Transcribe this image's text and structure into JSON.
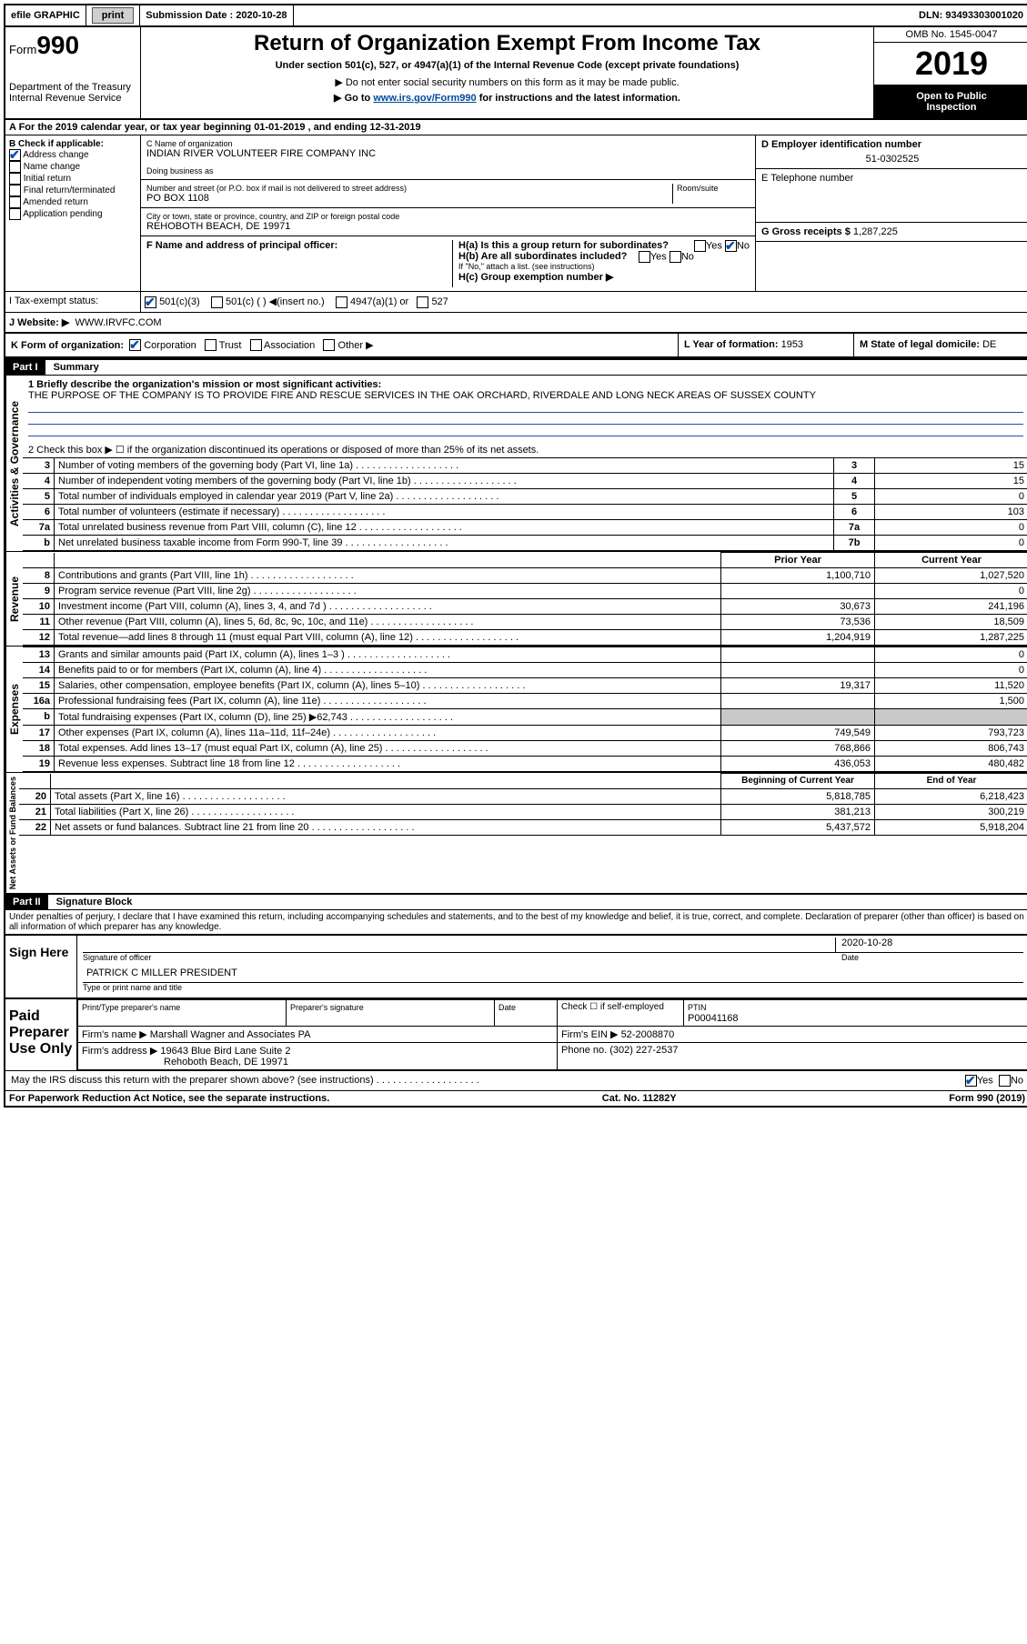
{
  "topbar": {
    "efile": "efile GRAPHIC",
    "print": "print",
    "submission_label": "Submission Date :",
    "submission_date": "2020-10-28",
    "dln_label": "DLN:",
    "dln": "93493303001020"
  },
  "header": {
    "form_word": "Form",
    "form_no": "990",
    "dept1": "Department of the Treasury",
    "dept2": "Internal Revenue Service",
    "title": "Return of Organization Exempt From Income Tax",
    "subtitle": "Under section 501(c), 527, or 4947(a)(1) of the Internal Revenue Code (except private foundations)",
    "note1": "▶ Do not enter social security numbers on this form as it may be made public.",
    "note2_pre": "▶ Go to ",
    "note2_link": "www.irs.gov/Form990",
    "note2_post": " for instructions and the latest information.",
    "omb": "OMB No. 1545-0047",
    "year": "2019",
    "open_public1": "Open to Public",
    "open_public2": "Inspection"
  },
  "lineA": "A For the 2019 calendar year, or tax year beginning 01-01-2019    , and ending 12-31-2019",
  "colB": {
    "title": "B Check if applicable:",
    "items": [
      "Address change",
      "Name change",
      "Initial return",
      "Final return/terminated",
      "Amended return",
      "Application pending"
    ],
    "checked_index": 0
  },
  "colC": {
    "name_label": "C Name of organization",
    "name": "INDIAN RIVER VOLUNTEER FIRE COMPANY INC",
    "dba_label": "Doing business as",
    "dba": "",
    "street_label": "Number and street (or P.O. box if mail is not delivered to street address)",
    "room_label": "Room/suite",
    "street": "PO BOX 1108",
    "city_label": "City or town, state or province, country, and ZIP or foreign postal code",
    "city": "REHOBOTH BEACH, DE  19971",
    "f_label": "F  Name and address of principal officer:",
    "f_value": ""
  },
  "colD": {
    "ein_label": "D Employer identification number",
    "ein": "51-0302525",
    "tel_label": "E Telephone number",
    "tel": "",
    "g_label": "G Gross receipts $",
    "g_value": "1,287,225"
  },
  "h": {
    "ha": "H(a)  Is this a group return for subordinates?",
    "hb": "H(b)  Are all subordinates included?",
    "hb_note": "If \"No,\" attach a list. (see instructions)",
    "hc": "H(c)  Group exemption number ▶",
    "yes": "Yes",
    "no": "No"
  },
  "i": {
    "label": "I   Tax-exempt status:",
    "opts": [
      "501(c)(3)",
      "501(c) (  ) ◀(insert no.)",
      "4947(a)(1) or",
      "527"
    ]
  },
  "j": {
    "label": "J   Website: ▶",
    "value": "WWW.IRVFC.COM"
  },
  "k": {
    "label": "K Form of organization:",
    "opts": [
      "Corporation",
      "Trust",
      "Association",
      "Other ▶"
    ],
    "l_label": "L Year of formation:",
    "l_value": "1953",
    "m_label": "M State of legal domicile:",
    "m_value": "DE"
  },
  "part1": {
    "title": "Part I",
    "sub": "Summary",
    "q1_label": "1  Briefly describe the organization's mission or most significant activities:",
    "q1_text": "THE PURPOSE OF THE COMPANY IS TO PROVIDE FIRE AND RESCUE SERVICES IN THE OAK ORCHARD, RIVERDALE AND LONG NECK AREAS OF SUSSEX COUNTY",
    "q2": "2   Check this box ▶ ☐  if the organization discontinued its operations or disposed of more than 25% of its net assets.",
    "governance_label": "Activities & Governance",
    "rows_gov": [
      {
        "n": "3",
        "t": "Number of voting members of the governing body (Part VI, line 1a)",
        "box": "3",
        "v": "15"
      },
      {
        "n": "4",
        "t": "Number of independent voting members of the governing body (Part VI, line 1b)",
        "box": "4",
        "v": "15"
      },
      {
        "n": "5",
        "t": "Total number of individuals employed in calendar year 2019 (Part V, line 2a)",
        "box": "5",
        "v": "0"
      },
      {
        "n": "6",
        "t": "Total number of volunteers (estimate if necessary)",
        "box": "6",
        "v": "103"
      },
      {
        "n": "7a",
        "t": "Total unrelated business revenue from Part VIII, column (C), line 12",
        "box": "7a",
        "v": "0"
      },
      {
        "n": "b",
        "t": "Net unrelated business taxable income from Form 990-T, line 39",
        "box": "7b",
        "v": "0"
      }
    ],
    "col_prior": "Prior Year",
    "col_current": "Current Year",
    "revenue_label": "Revenue",
    "rows_rev": [
      {
        "n": "8",
        "t": "Contributions and grants (Part VIII, line 1h)",
        "p": "1,100,710",
        "c": "1,027,520"
      },
      {
        "n": "9",
        "t": "Program service revenue (Part VIII, line 2g)",
        "p": "",
        "c": "0"
      },
      {
        "n": "10",
        "t": "Investment income (Part VIII, column (A), lines 3, 4, and 7d )",
        "p": "30,673",
        "c": "241,196"
      },
      {
        "n": "11",
        "t": "Other revenue (Part VIII, column (A), lines 5, 6d, 8c, 9c, 10c, and 11e)",
        "p": "73,536",
        "c": "18,509"
      },
      {
        "n": "12",
        "t": "Total revenue—add lines 8 through 11 (must equal Part VIII, column (A), line 12)",
        "p": "1,204,919",
        "c": "1,287,225"
      }
    ],
    "expenses_label": "Expenses",
    "rows_exp": [
      {
        "n": "13",
        "t": "Grants and similar amounts paid (Part IX, column (A), lines 1–3 )",
        "p": "",
        "c": "0"
      },
      {
        "n": "14",
        "t": "Benefits paid to or for members (Part IX, column (A), line 4)",
        "p": "",
        "c": "0"
      },
      {
        "n": "15",
        "t": "Salaries, other compensation, employee benefits (Part IX, column (A), lines 5–10)",
        "p": "19,317",
        "c": "11,520"
      },
      {
        "n": "16a",
        "t": "Professional fundraising fees (Part IX, column (A), line 11e)",
        "p": "",
        "c": "1,500"
      },
      {
        "n": "b",
        "t": "Total fundraising expenses (Part IX, column (D), line 25) ▶62,743",
        "p": "SHADE",
        "c": "SHADE"
      },
      {
        "n": "17",
        "t": "Other expenses (Part IX, column (A), lines 11a–11d, 11f–24e)",
        "p": "749,549",
        "c": "793,723"
      },
      {
        "n": "18",
        "t": "Total expenses. Add lines 13–17 (must equal Part IX, column (A), line 25)",
        "p": "768,866",
        "c": "806,743"
      },
      {
        "n": "19",
        "t": "Revenue less expenses. Subtract line 18 from line 12",
        "p": "436,053",
        "c": "480,482"
      }
    ],
    "net_label": "Net Assets or Fund Balances",
    "col_begin": "Beginning of Current Year",
    "col_end": "End of Year",
    "rows_net": [
      {
        "n": "20",
        "t": "Total assets (Part X, line 16)",
        "p": "5,818,785",
        "c": "6,218,423"
      },
      {
        "n": "21",
        "t": "Total liabilities (Part X, line 26)",
        "p": "381,213",
        "c": "300,219"
      },
      {
        "n": "22",
        "t": "Net assets or fund balances. Subtract line 21 from line 20",
        "p": "5,437,572",
        "c": "5,918,204"
      }
    ]
  },
  "part2": {
    "title": "Part II",
    "sub": "Signature Block",
    "decl": "Under penalties of perjury, I declare that I have examined this return, including accompanying schedules and statements, and to the best of my knowledge and belief, it is true, correct, and complete. Declaration of preparer (other than officer) is based on all information of which preparer has any knowledge.",
    "sign_here": "Sign Here",
    "sig_officer": "Signature of officer",
    "sig_date": "Date",
    "sig_date_val": "2020-10-28",
    "officer_name": "PATRICK C MILLER  PRESIDENT",
    "officer_caption": "Type or print name and title",
    "paid": "Paid Preparer Use Only",
    "prep_name_label": "Print/Type preparer's name",
    "prep_sig_label": "Preparer's signature",
    "date_label": "Date",
    "check_self": "Check ☐ if self-employed",
    "ptin_label": "PTIN",
    "ptin": "P00041168",
    "firm_name_label": "Firm's name    ▶",
    "firm_name": "Marshall Wagner and Associates PA",
    "firm_ein_label": "Firm's EIN ▶",
    "firm_ein": "52-2008870",
    "firm_addr_label": "Firm's address ▶",
    "firm_addr1": "19643 Blue Bird Lane Suite 2",
    "firm_addr2": "Rehoboth Beach, DE  19971",
    "phone_label": "Phone no.",
    "phone": "(302) 227-2537",
    "discuss": "May the IRS discuss this return with the preparer shown above? (see instructions)"
  },
  "footer": {
    "left": "For Paperwork Reduction Act Notice, see the separate instructions.",
    "mid": "Cat. No. 11282Y",
    "right": "Form 990 (2019)"
  },
  "colors": {
    "link": "#004b9b",
    "check_blue": "#0a4ea8",
    "check_green": "#1a8a2a",
    "shade": "#c9c9c9"
  }
}
